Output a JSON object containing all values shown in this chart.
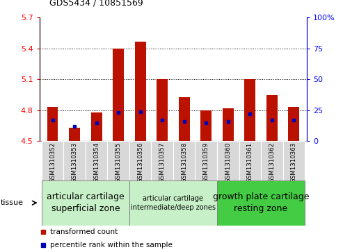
{
  "title": "GDS5434 / 10851569",
  "samples": [
    "GSM1310352",
    "GSM1310353",
    "GSM1310354",
    "GSM1310355",
    "GSM1310356",
    "GSM1310357",
    "GSM1310358",
    "GSM1310359",
    "GSM1310360",
    "GSM1310361",
    "GSM1310362",
    "GSM1310363"
  ],
  "transformed_count": [
    4.83,
    4.63,
    4.78,
    5.4,
    5.47,
    5.1,
    4.93,
    4.8,
    4.82,
    5.1,
    4.95,
    4.83
  ],
  "percentile_rank": [
    17,
    12,
    15,
    23,
    24,
    17,
    16,
    15,
    16,
    22,
    17,
    17
  ],
  "bar_bottom": 4.5,
  "left_ylim": [
    4.5,
    5.7
  ],
  "right_ylim": [
    0,
    100
  ],
  "left_yticks": [
    4.5,
    4.8,
    5.1,
    5.4,
    5.7
  ],
  "right_yticks": [
    0,
    25,
    50,
    75,
    100
  ],
  "left_ytick_labels": [
    "4.5",
    "4.8",
    "5.1",
    "5.4",
    "5.7"
  ],
  "right_ytick_labels": [
    "0",
    "25",
    "50",
    "75",
    "100%"
  ],
  "bar_color": "#bb1100",
  "percentile_color": "#0000bb",
  "grid_color": "black",
  "tissue_groups": [
    {
      "label": "articular cartilage\nsuperficial zone",
      "start": 0,
      "end": 4,
      "color": "#c8f0c8",
      "fontsize": 9
    },
    {
      "label": "articular cartilage\nintermediate/deep zones",
      "start": 4,
      "end": 8,
      "color": "#c8f0c8",
      "fontsize": 7
    },
    {
      "label": "growth plate cartilage\nresting zone",
      "start": 8,
      "end": 12,
      "color": "#44cc44",
      "fontsize": 9
    }
  ],
  "tissue_label": "tissue",
  "legend_items": [
    {
      "label": "transformed count",
      "color": "#bb1100"
    },
    {
      "label": "percentile rank within the sample",
      "color": "#0000bb"
    }
  ],
  "bar_width": 0.5,
  "figsize": [
    4.93,
    3.63
  ],
  "dpi": 100,
  "cell_color": "#d8d8d8",
  "plot_bg": "white",
  "spine_color": "#888888"
}
